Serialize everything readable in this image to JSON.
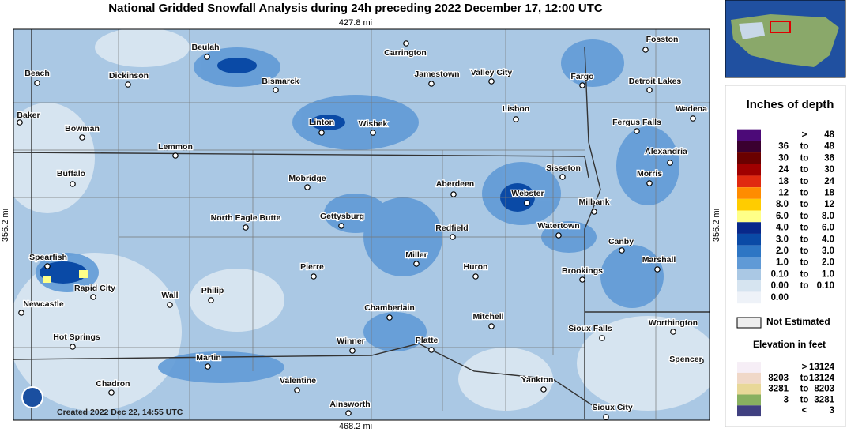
{
  "header": {
    "title": "National Gridded Snowfall Analysis during 24h preceding 2022 December 17, 12:00 UTC"
  },
  "map": {
    "top_scale": "427.8 mi",
    "bottom_scale": "468.2 mi",
    "left_scale": "356.2 mi",
    "right_scale": "356.2 mi",
    "footer": "Created 2022 Dec 22, 14:55 UTC",
    "cities": [
      "Beulah",
      "Bismarck",
      "Carrington",
      "Fosston",
      "Beach",
      "Dickinson",
      "Jamestown",
      "Valley City",
      "Fargo",
      "Detroit Lakes",
      "Wadena",
      "Baker",
      "Bowman",
      "Linton",
      "Wishek",
      "Lisbon",
      "Fergus Falls",
      "Lemmon",
      "Alexandria",
      "Sisseton",
      "Morris",
      "Buffalo",
      "Mobridge",
      "Aberdeen",
      "Webster",
      "Milbank",
      "Gettysburg",
      "North Eagle Butte",
      "Redfield",
      "Watertown",
      "Canby",
      "Marshall",
      "Spearfish",
      "Miller",
      "Pierre",
      "Huron",
      "Brookings",
      "Rapid City",
      "Wall",
      "Philip",
      "Newcastle",
      "Chamberlain",
      "Mitchell",
      "Sioux Falls",
      "Worthington",
      "Hot Springs",
      "Winner",
      "Platte",
      "Spencer",
      "Martin",
      "Valentine",
      "Yankton",
      "Chadron",
      "Ainsworth",
      "Sioux City"
    ]
  },
  "legend": {
    "title": "Inches of depth",
    "rows": [
      {
        "color": "#4c0a78",
        "sep": ">",
        "to": "48"
      },
      {
        "color": "#3a0030",
        "from": "36",
        "sep": "to",
        "to": "48"
      },
      {
        "color": "#6a0000",
        "from": "30",
        "sep": "to",
        "to": "36"
      },
      {
        "color": "#a00000",
        "from": "24",
        "sep": "to",
        "to": "30"
      },
      {
        "color": "#e02a10",
        "from": "18",
        "sep": "to",
        "to": "24"
      },
      {
        "color": "#ff8c00",
        "from": "12",
        "sep": "to",
        "to": "18"
      },
      {
        "color": "#ffcc00",
        "from": "8.0",
        "sep": "to",
        "to": "12"
      },
      {
        "color": "#ffff88",
        "from": "6.0",
        "sep": "to",
        "to": "8.0"
      },
      {
        "color": "#08288a",
        "from": "4.0",
        "sep": "to",
        "to": "6.0"
      },
      {
        "color": "#0a4aa6",
        "from": "3.0",
        "sep": "to",
        "to": "4.0"
      },
      {
        "color": "#2e76c4",
        "from": "2.0",
        "sep": "to",
        "to": "3.0"
      },
      {
        "color": "#609ad6",
        "from": "1.0",
        "sep": "to",
        "to": "2.0"
      },
      {
        "color": "#aac8e4",
        "from": "0.10",
        "sep": "to",
        "to": "1.0"
      },
      {
        "color": "#d6e4f0",
        "from": "0.00",
        "sep": "to",
        "to": "0.10"
      },
      {
        "color": "#eef2f8",
        "from": "0.00"
      }
    ],
    "not_estimated": "Not Estimated",
    "elevation_title": "Elevation in feet",
    "elevation_rows": [
      {
        "color": "#f6eef6",
        "sep": ">",
        "to": "13124"
      },
      {
        "color": "#f0d8c8",
        "from": "8203",
        "sep": "to",
        "to": "13124"
      },
      {
        "color": "#e8d898",
        "from": "3281",
        "sep": "to",
        "to": "8203"
      },
      {
        "color": "#88b060",
        "from": "3",
        "sep": "to",
        "to": "3281"
      },
      {
        "color": "#404080",
        "sep": "<",
        "to": "3"
      }
    ]
  }
}
